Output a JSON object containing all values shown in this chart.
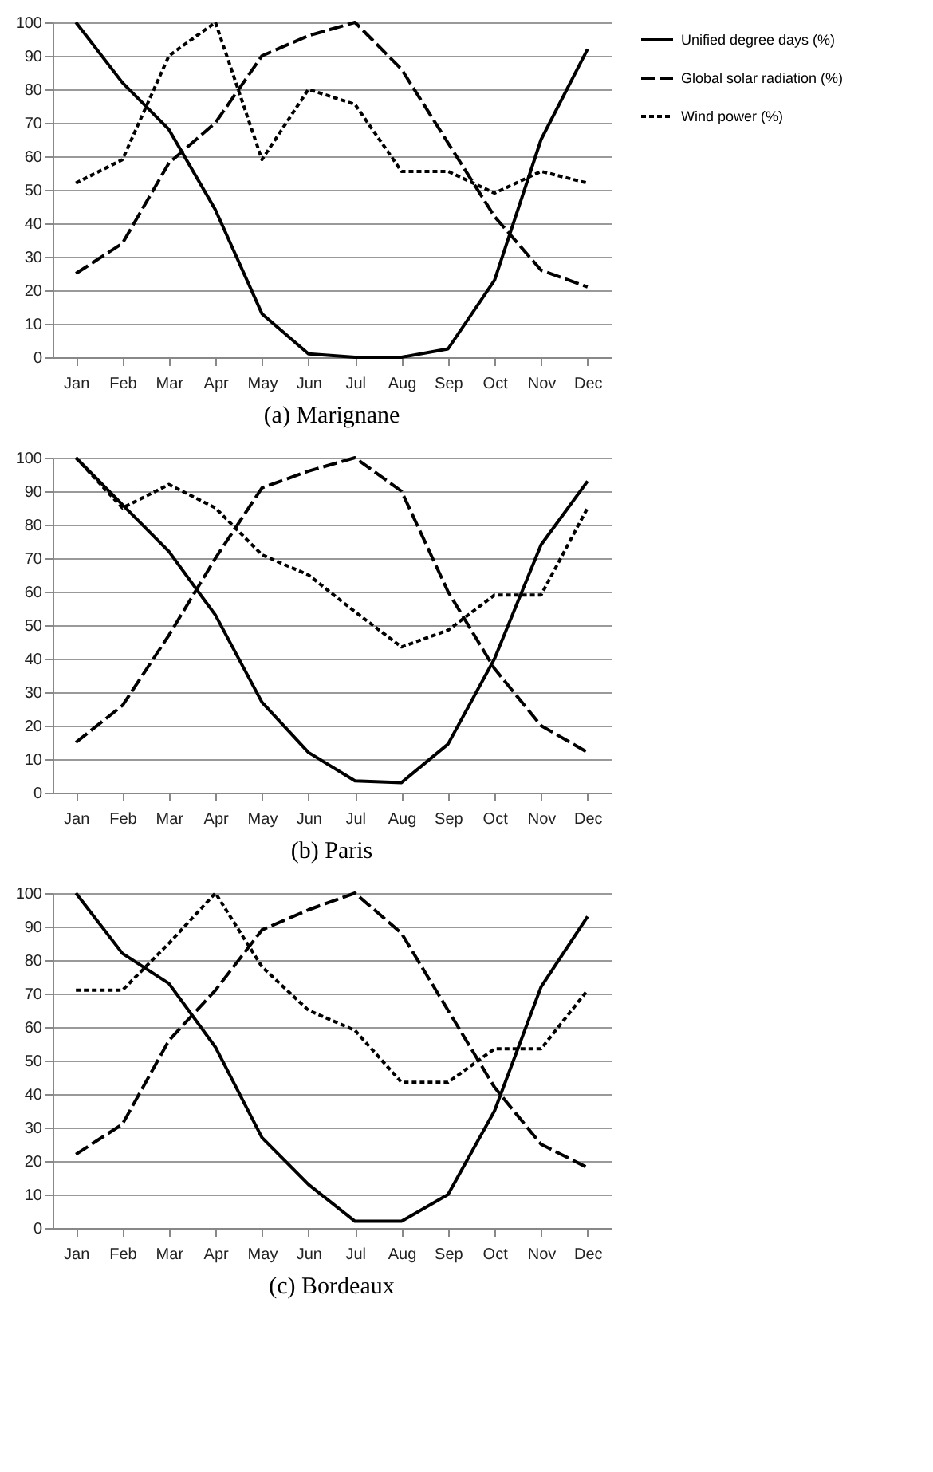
{
  "chart_data": [
    {
      "type": "line",
      "title": "(a) Marignane",
      "categories": [
        "Jan",
        "Feb",
        "Mar",
        "Apr",
        "May",
        "Jun",
        "Jul",
        "Aug",
        "Sep",
        "Oct",
        "Nov",
        "Dec"
      ],
      "ylim": [
        0,
        100
      ],
      "yticks": [
        0,
        10,
        20,
        30,
        40,
        50,
        60,
        70,
        80,
        90,
        100
      ],
      "grid": "y",
      "legend": "top right",
      "marker": "none",
      "series": [
        {
          "name": "Unified degree days (%)",
          "color": "#000000",
          "line_style": "solid",
          "values": [
            100,
            82,
            68,
            44,
            13,
            1,
            0,
            0,
            2.5,
            23,
            65,
            92
          ]
        },
        {
          "name": "Global solar radiation (%)",
          "color": "#000000",
          "line_style": "dashed",
          "values": [
            25,
            34,
            58,
            70,
            90,
            96,
            100,
            86,
            64,
            42,
            26,
            21
          ]
        },
        {
          "name": "Wind power (%)",
          "color": "#000000",
          "line_style": "dotted",
          "values": [
            52,
            59,
            90,
            100,
            59,
            80,
            75.5,
            55.5,
            55.5,
            49,
            55.5,
            52
          ]
        }
      ]
    },
    {
      "type": "line",
      "title": "(b) Paris",
      "categories": [
        "Jan",
        "Feb",
        "Mar",
        "Apr",
        "May",
        "Jun",
        "Jul",
        "Aug",
        "Sep",
        "Oct",
        "Nov",
        "Dec"
      ],
      "ylim": [
        0,
        100
      ],
      "yticks": [
        0,
        10,
        20,
        30,
        40,
        50,
        60,
        70,
        80,
        90,
        100
      ],
      "grid": "y",
      "legend": "top right",
      "marker": "none",
      "series": [
        {
          "name": "Unified degree days (%)",
          "color": "#000000",
          "line_style": "solid",
          "values": [
            100,
            86,
            72,
            53,
            27,
            12,
            3.5,
            3,
            14.5,
            40,
            74,
            93
          ]
        },
        {
          "name": "Global solar radiation (%)",
          "color": "#000000",
          "line_style": "dashed",
          "values": [
            15,
            26,
            47,
            70,
            91,
            96,
            100,
            90,
            60,
            37,
            20,
            12
          ]
        },
        {
          "name": "Wind power (%)",
          "color": "#000000",
          "line_style": "dotted",
          "values": [
            100,
            85,
            92,
            85,
            71,
            65,
            54,
            43.5,
            48.5,
            59,
            59,
            85
          ]
        }
      ]
    },
    {
      "type": "line",
      "title": "(c) Bordeaux",
      "categories": [
        "Jan",
        "Feb",
        "Mar",
        "Apr",
        "May",
        "Jun",
        "Jul",
        "Aug",
        "Sep",
        "Oct",
        "Nov",
        "Dec"
      ],
      "ylim": [
        0,
        100
      ],
      "yticks": [
        0,
        10,
        20,
        30,
        40,
        50,
        60,
        70,
        80,
        90,
        100
      ],
      "grid": "y",
      "legend": "top right",
      "marker": "none",
      "series": [
        {
          "name": "Unified degree days (%)",
          "color": "#000000",
          "line_style": "solid",
          "values": [
            100,
            82,
            73,
            54,
            27,
            13,
            2,
            2,
            10,
            35,
            72,
            93
          ]
        },
        {
          "name": "Global solar radiation (%)",
          "color": "#000000",
          "line_style": "dashed",
          "values": [
            22,
            31,
            56,
            71,
            89,
            95,
            100,
            88,
            65,
            42,
            25,
            18
          ]
        },
        {
          "name": "Wind power (%)",
          "color": "#000000",
          "line_style": "dotted",
          "values": [
            71,
            71,
            85,
            100,
            78,
            65,
            59,
            43.5,
            43.5,
            53.5,
            53.5,
            71
          ]
        }
      ]
    }
  ]
}
